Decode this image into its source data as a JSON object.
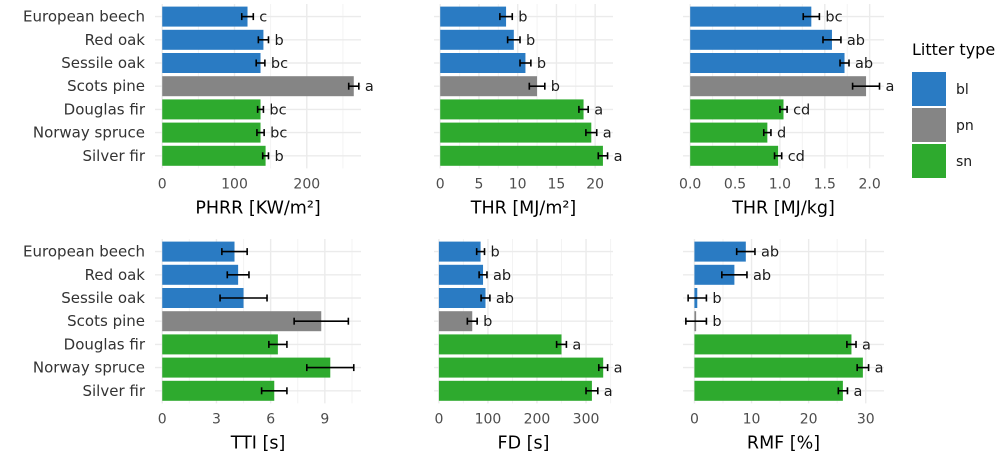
{
  "chart_data": [
    {
      "type": "bar",
      "orientation": "horizontal",
      "xlabel": "PHRR [KW/m²]",
      "xlim": [
        -10,
        275
      ],
      "ticks": [
        0,
        100,
        200
      ],
      "categories": [
        "European beech",
        "Red oak",
        "Sessile oak",
        "Scots pine",
        "Douglas fir",
        "Norway spruce",
        "Silver fir"
      ],
      "litter_type": [
        "bl",
        "bl",
        "bl",
        "pn",
        "sn",
        "sn",
        "sn"
      ],
      "values": [
        118,
        140,
        136,
        265,
        136,
        136,
        143
      ],
      "error": [
        8,
        7,
        6,
        7,
        4,
        5,
        4
      ],
      "letters": [
        "c",
        "b",
        "bc",
        "a",
        "bc",
        "bc",
        "b"
      ],
      "grid": true
    },
    {
      "type": "bar",
      "orientation": "horizontal",
      "xlabel": "THR [MJ/m²]",
      "xlim": [
        -0.8,
        22.3
      ],
      "ticks": [
        0,
        5,
        10,
        15,
        20
      ],
      "categories": [
        "European beech",
        "Red oak",
        "Sessile oak",
        "Scots pine",
        "Douglas fir",
        "Norway spruce",
        "Silver fir"
      ],
      "litter_type": [
        "bl",
        "bl",
        "bl",
        "pn",
        "sn",
        "sn",
        "sn"
      ],
      "values": [
        8.5,
        9.5,
        11,
        12.5,
        18.5,
        19.5,
        21
      ],
      "error": [
        0.8,
        0.8,
        0.7,
        1.0,
        0.6,
        0.7,
        0.6
      ],
      "letters": [
        "b",
        "b",
        "b",
        "b",
        "a",
        "a",
        "a"
      ],
      "grid": true
    },
    {
      "type": "bar",
      "orientation": "horizontal",
      "xlabel": "THR [MJ/kg]",
      "xlim": [
        -0.08,
        2.16
      ],
      "ticks": [
        0.0,
        0.5,
        1.0,
        1.5,
        2.0
      ],
      "tick_labels": [
        "0.0",
        "0.5",
        "1.0",
        "1.5",
        "2.0"
      ],
      "categories": [
        "European beech",
        "Red oak",
        "Sessile oak",
        "Scots pine",
        "Douglas fir",
        "Norway spruce",
        "Silver fir"
      ],
      "litter_type": [
        "bl",
        "bl",
        "bl",
        "pn",
        "sn",
        "sn",
        "sn"
      ],
      "values": [
        1.35,
        1.58,
        1.72,
        1.96,
        1.04,
        0.86,
        0.98
      ],
      "error": [
        0.09,
        0.1,
        0.05,
        0.15,
        0.04,
        0.04,
        0.04
      ],
      "letters": [
        "bc",
        "ab",
        "ab",
        "a",
        "cd",
        "d",
        "cd"
      ],
      "grid": true
    },
    {
      "type": "bar",
      "orientation": "horizontal",
      "xlabel": "TTI [s]",
      "xlim": [
        -0.4,
        11.0
      ],
      "ticks": [
        0,
        3,
        6,
        9
      ],
      "categories": [
        "European beech",
        "Red oak",
        "Sessile oak",
        "Scots pine",
        "Douglas fir",
        "Norway spruce",
        "Silver fir"
      ],
      "litter_type": [
        "bl",
        "bl",
        "bl",
        "pn",
        "sn",
        "sn",
        "sn"
      ],
      "values": [
        4.0,
        4.2,
        4.5,
        8.8,
        6.4,
        9.3,
        6.2
      ],
      "error": [
        0.7,
        0.6,
        1.3,
        1.5,
        0.5,
        1.3,
        0.7
      ],
      "letters": [
        "",
        "",
        "",
        "",
        "",
        "",
        ""
      ],
      "grid": true
    },
    {
      "type": "bar",
      "orientation": "horizontal",
      "xlabel": "FD [s]",
      "xlim": [
        -10,
        355
      ],
      "ticks": [
        0,
        100,
        200,
        300
      ],
      "categories": [
        "European beech",
        "Red oak",
        "Sessile oak",
        "Scots pine",
        "Douglas fir",
        "Norway spruce",
        "Silver fir"
      ],
      "litter_type": [
        "bl",
        "bl",
        "bl",
        "pn",
        "sn",
        "sn",
        "sn"
      ],
      "values": [
        85,
        90,
        95,
        68,
        250,
        335,
        312
      ],
      "error": [
        8,
        8,
        9,
        10,
        10,
        9,
        12
      ],
      "letters": [
        "b",
        "ab",
        "ab",
        "b",
        "a",
        "a",
        "a"
      ],
      "grid": true
    },
    {
      "type": "bar",
      "orientation": "horizontal",
      "xlabel": "RMF [%]",
      "xlim": [
        -2.0,
        33.2
      ],
      "ticks": [
        0,
        10,
        20,
        30
      ],
      "categories": [
        "European beech",
        "Red oak",
        "Sessile oak",
        "Scots pine",
        "Douglas fir",
        "Norway spruce",
        "Silver fir"
      ],
      "litter_type": [
        "bl",
        "bl",
        "bl",
        "pn",
        "sn",
        "sn",
        "sn"
      ],
      "values": [
        9,
        7,
        0.5,
        0.3,
        27.5,
        29.5,
        26
      ],
      "error": [
        1.6,
        2.2,
        1.6,
        1.8,
        0.8,
        1.0,
        0.8
      ],
      "letters": [
        "ab",
        "ab",
        "b",
        "b",
        "a",
        "a",
        "a"
      ],
      "grid": true
    }
  ],
  "legend": {
    "title": "Litter type",
    "placement": "right",
    "entries": [
      {
        "key": "bl",
        "label": "bl",
        "color": "#2a7bc3"
      },
      {
        "key": "pn",
        "label": "pn",
        "color": "#858585"
      },
      {
        "key": "sn",
        "label": "sn",
        "color": "#2eaa2e"
      }
    ]
  },
  "colors": {
    "bl": "#2a7bc3",
    "pn": "#858585",
    "sn": "#2eaa2e",
    "grid": "#ebebeb",
    "errorbar": "#000000"
  }
}
